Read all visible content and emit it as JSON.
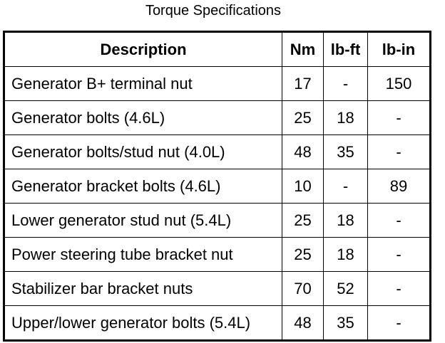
{
  "title": "Torque Specifications",
  "columns": [
    "Description",
    "Nm",
    "lb-ft",
    "lb-in"
  ],
  "rows": [
    [
      "Generator B+ terminal nut",
      "17",
      "-",
      "150"
    ],
    [
      "Generator bolts (4.6L)",
      "25",
      "18",
      "-"
    ],
    [
      "Generator bolts/stud nut (4.0L)",
      "48",
      "35",
      "-"
    ],
    [
      "Generator bracket bolts (4.6L)",
      "10",
      "-",
      "89"
    ],
    [
      "Lower generator stud nut (5.4L)",
      "25",
      "18",
      "-"
    ],
    [
      "Power steering tube bracket nut",
      "25",
      "18",
      "-"
    ],
    [
      "Stabilizer bar bracket nuts",
      "70",
      "52",
      "-"
    ],
    [
      "Upper/lower generator bolts (5.4L)",
      "48",
      "35",
      "-"
    ]
  ]
}
